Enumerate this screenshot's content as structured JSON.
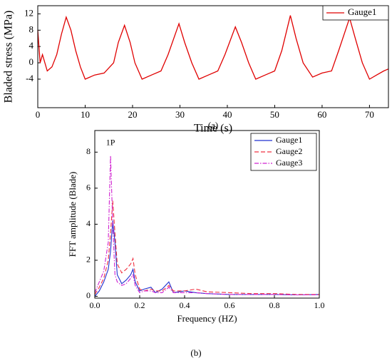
{
  "chart_data": [
    {
      "type": "line",
      "xlabel": "Time (s)",
      "ylabel": "Bladed stress (MPa)",
      "caption": "(a)",
      "x": [
        0,
        0.5,
        1,
        2,
        3,
        4,
        5,
        6,
        7,
        8,
        9,
        10,
        11,
        12,
        14,
        16,
        17,
        18.3,
        19.5,
        20.5,
        22,
        24,
        26,
        27.5,
        29.8,
        31,
        32.5,
        34,
        36,
        38,
        39.5,
        41.7,
        43,
        44.5,
        46,
        48,
        50,
        51.5,
        53.3,
        54.5,
        56,
        58,
        60,
        62,
        63.5,
        65.8,
        67,
        68.5,
        70,
        71.5,
        73,
        74
      ],
      "series": [
        {
          "name": "Gauge1",
          "color": "#e00000",
          "linestyle": "solid",
          "values": [
            8,
            0,
            2,
            -2,
            -1,
            2,
            7,
            11.2,
            8,
            3,
            -1,
            -4,
            -3.5,
            -3,
            -2.5,
            0,
            5,
            9.2,
            5,
            0,
            -4,
            -3,
            -2,
            2,
            9.6,
            5,
            0,
            -4,
            -3,
            -2,
            2,
            8.8,
            5,
            0,
            -4,
            -3,
            -2,
            3,
            11.6,
            6,
            0,
            -3.5,
            -2.5,
            -2,
            3,
            11,
            6,
            0,
            -4,
            -3,
            -2,
            -1.5
          ]
        }
      ],
      "xlim": [
        0,
        74
      ],
      "xticks": [
        0,
        10,
        20,
        30,
        40,
        50,
        60,
        70
      ],
      "ylim": [
        -11,
        14
      ],
      "yticks": [
        -4,
        0,
        4,
        8,
        12
      ],
      "legend": "upper right"
    },
    {
      "type": "line",
      "xlabel": "Frequency (HZ)",
      "ylabel": "FFT amplitude (Blade)",
      "caption": "(b)",
      "annotation": {
        "text": "1P",
        "x": 0.07,
        "y": 8.5
      },
      "x": [
        0,
        0.02,
        0.04,
        0.06,
        0.07,
        0.08,
        0.09,
        0.1,
        0.12,
        0.14,
        0.16,
        0.17,
        0.18,
        0.2,
        0.22,
        0.25,
        0.27,
        0.3,
        0.33,
        0.35,
        0.4,
        0.45,
        0.5,
        0.6,
        0.7,
        0.8,
        0.9,
        1.0
      ],
      "series": [
        {
          "name": "Gauge1",
          "color": "#2030d0",
          "linestyle": "solid",
          "values": [
            0,
            0.3,
            0.8,
            1.5,
            2.5,
            4.2,
            3.0,
            1.2,
            0.7,
            0.9,
            1.2,
            1.5,
            0.8,
            0.3,
            0.4,
            0.5,
            0.2,
            0.4,
            0.8,
            0.2,
            0.3,
            0.2,
            0.15,
            0.1,
            0.1,
            0.1,
            0.08,
            0.1
          ]
        },
        {
          "name": "Gauge2",
          "color": "#f03040",
          "linestyle": "dashed",
          "values": [
            0.1,
            0.5,
            1.0,
            2.0,
            3.5,
            5.3,
            3.5,
            1.8,
            1.3,
            1.5,
            1.8,
            2.1,
            1.2,
            0.4,
            0.3,
            0.4,
            0.3,
            0.3,
            0.6,
            0.3,
            0.3,
            0.4,
            0.25,
            0.2,
            0.15,
            0.15,
            0.1,
            0.1
          ]
        },
        {
          "name": "Gauge3",
          "color": "#d020d0",
          "linestyle": "dashdot",
          "values": [
            0.2,
            0.8,
            1.4,
            3.0,
            7.8,
            4.0,
            1.2,
            0.8,
            0.6,
            0.7,
            1.0,
            1.2,
            0.6,
            0.2,
            0.3,
            0.3,
            0.2,
            0.2,
            0.5,
            0.2,
            0.2,
            0.2,
            0.15,
            0.1,
            0.1,
            0.1,
            0.08,
            0.08
          ]
        }
      ],
      "xlim": [
        0,
        1
      ],
      "xticks": [
        {
          "value": 0,
          "label": "0.0"
        },
        {
          "value": 0.2,
          "label": "0.2"
        },
        {
          "value": 0.4,
          "label": "0.4"
        },
        {
          "value": 0.6,
          "label": "0.6"
        },
        {
          "value": 0.8,
          "label": "0.8"
        },
        {
          "value": 1,
          "label": "1.0"
        }
      ],
      "ylim": [
        -0.1,
        9.2
      ],
      "yticks": [
        0,
        2,
        4,
        6,
        8
      ],
      "legend": "upper right"
    }
  ]
}
